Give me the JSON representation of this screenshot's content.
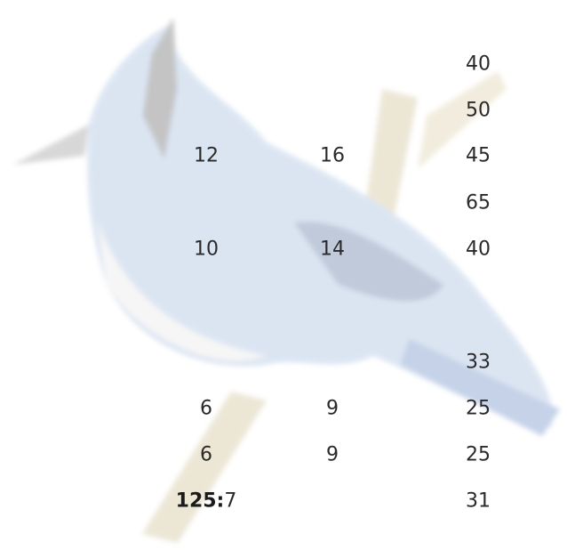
{
  "rows": [
    [
      null,
      null,
      40
    ],
    [
      null,
      null,
      50
    ],
    [
      12,
      16,
      45
    ],
    [
      null,
      null,
      65
    ],
    [
      10,
      14,
      40
    ],
    [
      null,
      null,
      33
    ],
    [
      6,
      9,
      25
    ],
    [
      6,
      9,
      25
    ],
    [
      {
        "label": "125:",
        "value": 7
      },
      null,
      31
    ]
  ]
}
